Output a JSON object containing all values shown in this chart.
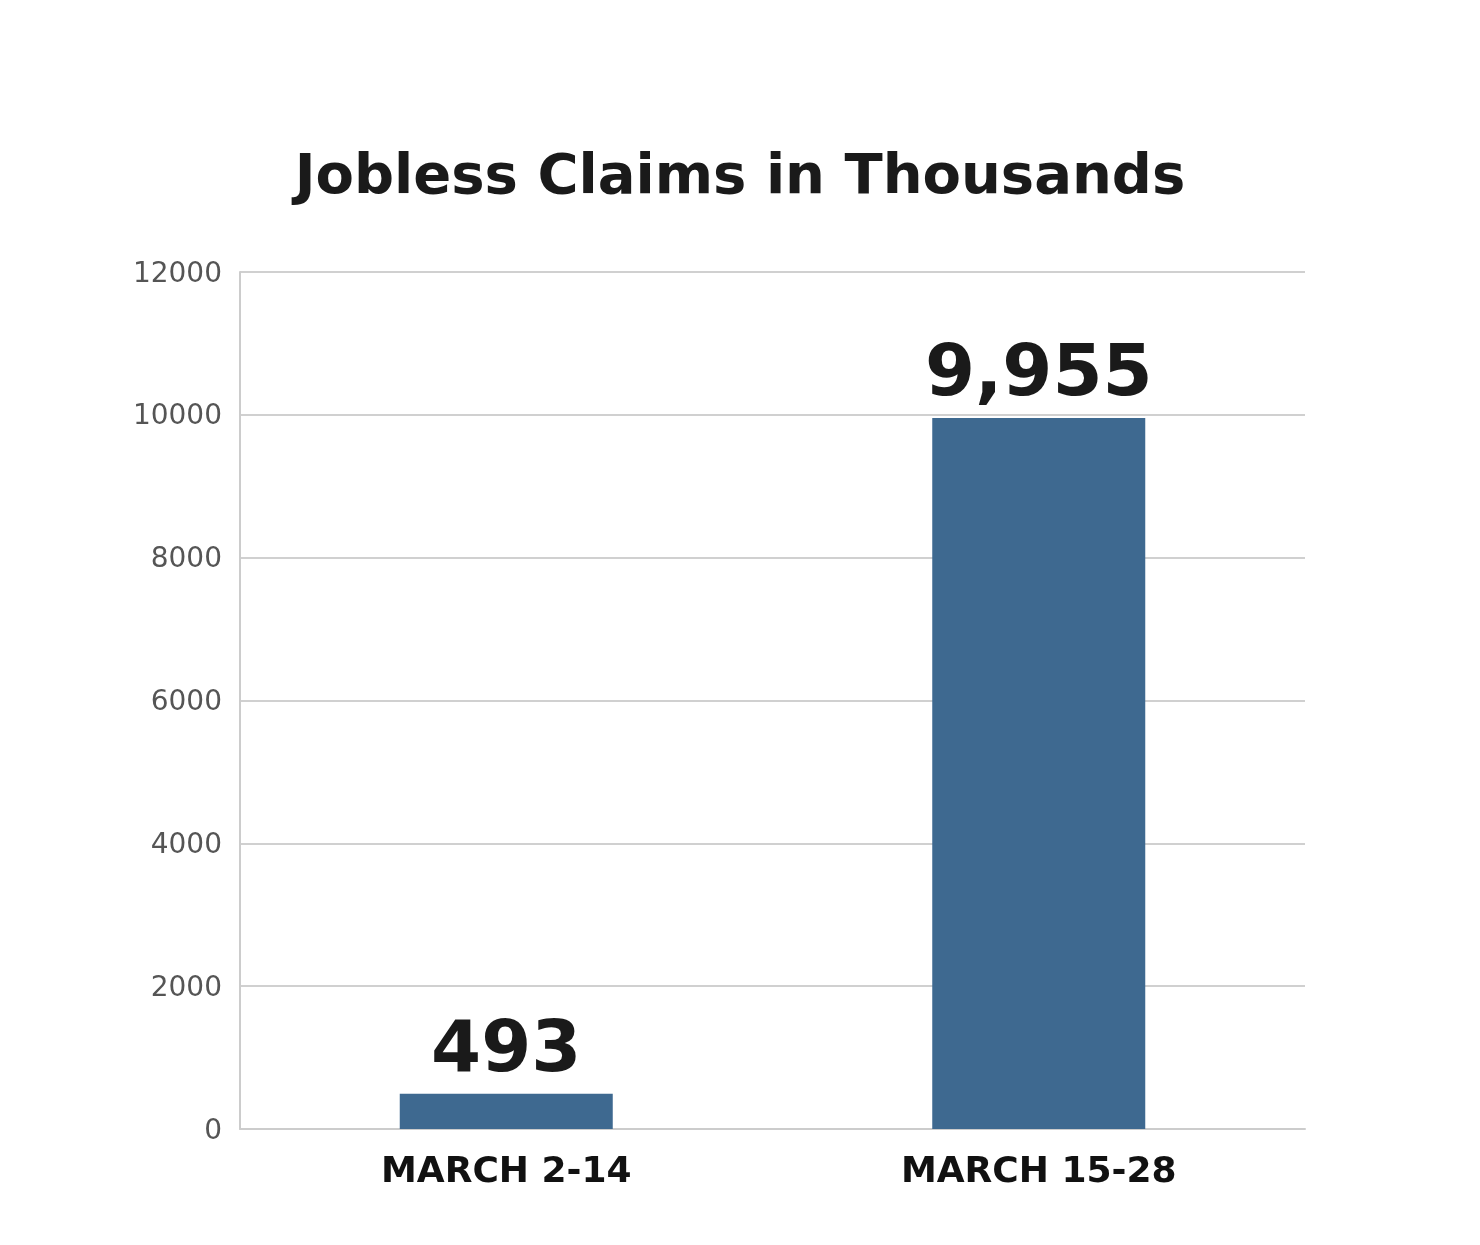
{
  "chart_data": {
    "type": "bar",
    "title": "Jobless Claims in Thousands",
    "categories": [
      "MARCH 2-14",
      "MARCH 15-28"
    ],
    "values": [
      493,
      9955
    ],
    "value_labels": [
      "493",
      "9,955"
    ],
    "color": "#3e6990",
    "ylim": [
      0,
      12000
    ],
    "yticks": [
      0,
      2000,
      4000,
      6000,
      8000,
      10000,
      12000
    ],
    "grid": "y"
  }
}
